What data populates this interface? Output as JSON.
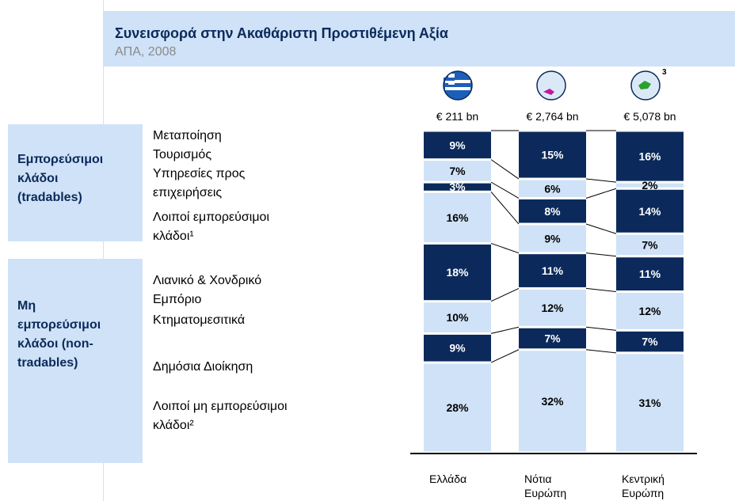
{
  "chart_data": {
    "type": "stacked-bar",
    "title": "Συνεισφορά στην Ακαθάριστη Προστιθέμενη Αξία",
    "subtitle": "ΑΠΑ, 2008",
    "categories": [
      "Ελλάδα",
      "Νότια Ευρώπη",
      "Κεντρική Ευρώπη"
    ],
    "column_notes": [
      "€ 211 bn",
      "€ 2,764 bn",
      "€ 5,078 bn"
    ],
    "footnote_marker": "3",
    "ylim": [
      0,
      100
    ],
    "groups": [
      "Εμπορεύσιμοι κλάδοι (tradables)",
      "Μη εμπορεύσιμοι κλάδοι (non-tradables)"
    ],
    "series": [
      {
        "name": "Μεταποίηση",
        "color": "#0b2a5b",
        "values": [
          9,
          15,
          16
        ],
        "value_labels": [
          "9%",
          "15%",
          "16%"
        ]
      },
      {
        "name": "Τουρισμός",
        "color": "#cfe2f7",
        "values": [
          7,
          6,
          2
        ],
        "value_labels": [
          "7%",
          "6%",
          "2%"
        ]
      },
      {
        "name": "Υπηρεσίες προς επιχειρήσεις",
        "color": "#0b2a5b",
        "values": [
          3,
          8,
          14
        ],
        "value_labels": [
          "3%",
          "8%",
          "14%"
        ]
      },
      {
        "name": "Λοιποί εμπορεύσιμοι κλάδοι¹",
        "color": "#cfe2f7",
        "values": [
          16,
          9,
          7
        ],
        "value_labels": [
          "16%",
          "9%",
          "7%"
        ]
      },
      {
        "name": "Λιανικό & Χονδρικό Εμπόριο",
        "color": "#0b2a5b",
        "values": [
          18,
          11,
          11
        ],
        "value_labels": [
          "18%",
          "11%",
          "11%"
        ]
      },
      {
        "name": "Κτηματομεσιτικά",
        "color": "#cfe2f7",
        "values": [
          10,
          12,
          12
        ],
        "value_labels": [
          "10%",
          "12%",
          "12%"
        ]
      },
      {
        "name": "Δημόσια Διοίκηση",
        "color": "#0b2a5b",
        "values": [
          9,
          7,
          7
        ],
        "value_labels": [
          "9%",
          "7%",
          "7%"
        ]
      },
      {
        "name": "Λοιποί μη εμπορεύσιμοι κλάδοι²",
        "color": "#cfe2f7",
        "values": [
          28,
          32,
          31
        ],
        "value_labels": [
          "28%",
          "32%",
          "31%"
        ]
      }
    ]
  }
}
